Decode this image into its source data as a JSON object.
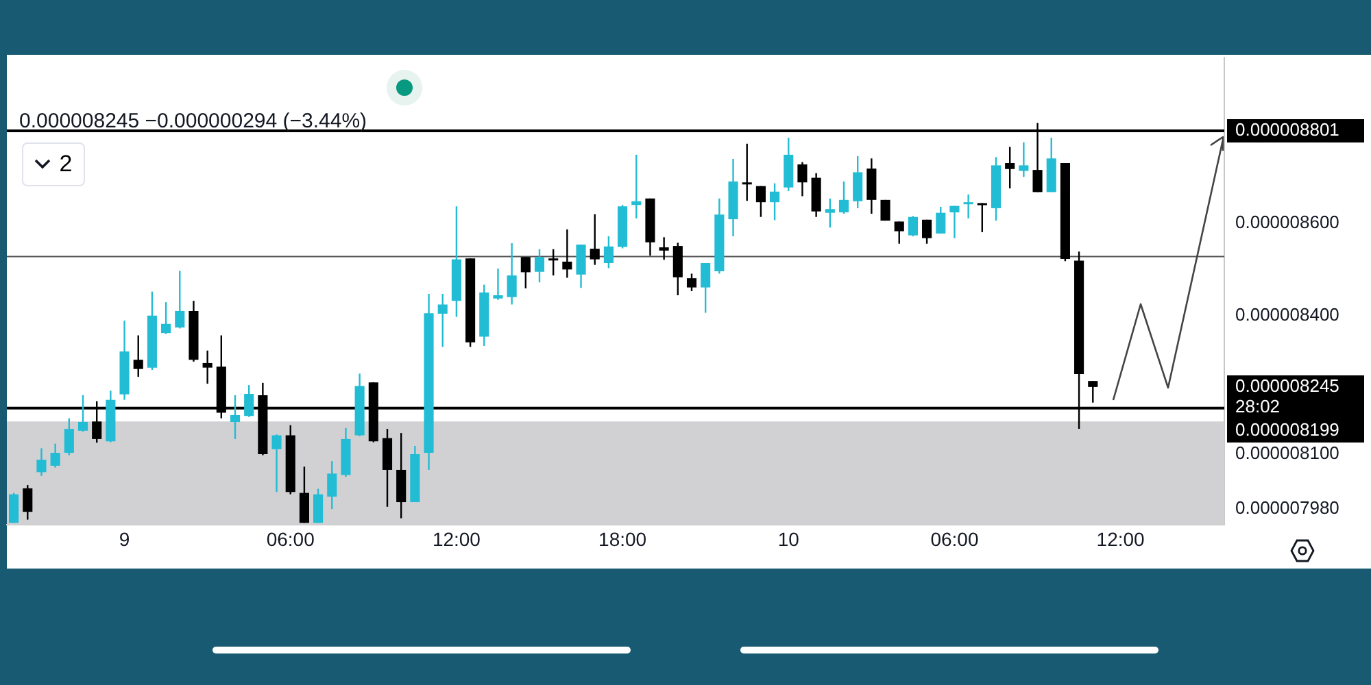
{
  "chart_data": {
    "type": "candlestick",
    "annotations": [
      "0.000008245 −0.000000294 (−3.44%)",
      "2",
      "0.000008245",
      "28:02"
    ],
    "categories": [
      null,
      null,
      null,
      null,
      null,
      null,
      null,
      null,
      "9",
      null,
      null,
      null,
      null,
      null,
      null,
      null,
      null,
      null,
      null,
      null,
      "06:00",
      null,
      null,
      null,
      null,
      null,
      null,
      null,
      null,
      null,
      null,
      null,
      "12:00",
      null,
      null,
      null,
      null,
      null,
      null,
      null,
      null,
      null,
      null,
      null,
      "18:00",
      null,
      null,
      null,
      null,
      null,
      null,
      null,
      null,
      null,
      null,
      null,
      "10",
      null,
      null,
      null,
      null,
      null,
      null,
      null,
      null,
      null,
      null,
      null,
      "06:00",
      null,
      null,
      null,
      null,
      null,
      null,
      null,
      null,
      null,
      null,
      null,
      "12:00",
      null,
      null,
      null,
      null,
      null,
      null,
      null
    ],
    "ohlc": [
      [
        7.95e-06,
        8.015e-06,
        7.95e-06,
        8.012e-06
      ],
      [
        8.025e-06,
        8.032e-06,
        7.957e-06,
        7.974e-06
      ],
      [
        8.06e-06,
        8.112e-06,
        8.052e-06,
        8.087e-06
      ],
      [
        8.074e-06,
        8.122e-06,
        8.07e-06,
        8.102e-06
      ],
      [
        8.102e-06,
        8.177e-06,
        8.097e-06,
        8.154e-06
      ],
      [
        8.15e-06,
        8.227e-06,
        8.148e-06,
        8.169e-06
      ],
      [
        8.17e-06,
        8.214e-06,
        8.124e-06,
        8.132e-06
      ],
      [
        8.127e-06,
        8.237e-06,
        8.125e-06,
        8.217e-06
      ],
      [
        8.229e-06,
        8.389e-06,
        8.217e-06,
        8.322e-06
      ],
      [
        8.304e-06,
        8.357e-06,
        8.267e-06,
        8.284e-06
      ],
      [
        8.287e-06,
        8.452e-06,
        8.282e-06,
        8.4e-06
      ],
      [
        8.362e-06,
        8.429e-06,
        8.36e-06,
        8.382e-06
      ],
      [
        8.374e-06,
        8.497e-06,
        8.372e-06,
        8.41e-06
      ],
      [
        8.41e-06,
        8.432e-06,
        8.3e-06,
        8.304e-06
      ],
      [
        8.297e-06,
        8.324e-06,
        8.252e-06,
        8.287e-06
      ],
      [
        8.289e-06,
        8.357e-06,
        8.177e-06,
        8.189e-06
      ],
      [
        8.169e-06,
        8.227e-06,
        8.132e-06,
        8.184e-06
      ],
      [
        8.182e-06,
        8.249e-06,
        8.18e-06,
        8.23e-06
      ],
      [
        8.227e-06,
        8.254e-06,
        8.097e-06,
        8.099e-06
      ],
      [
        8.11e-06,
        8.142e-06,
        8.017e-06,
        8.14e-06
      ],
      [
        8.14e-06,
        8.162e-06,
        8.012e-06,
        8.017e-06
      ],
      [
        8.015e-06,
        8.072e-06,
        7.95e-06,
        7.95e-06
      ],
      [
        7.95e-06,
        8.024e-06,
        7.95e-06,
        8.012e-06
      ],
      [
        8.007e-06,
        8.084e-06,
        7.98e-06,
        8.057e-06
      ],
      [
        8.054e-06,
        8.156e-06,
        8.05e-06,
        8.132e-06
      ],
      [
        8.14e-06,
        8.274e-06,
        8.138e-06,
        8.247e-06
      ],
      [
        8.255e-06,
        8.255e-06,
        8.125e-06,
        8.127e-06
      ],
      [
        8.134e-06,
        8.154e-06,
        7.985e-06,
        8.065e-06
      ],
      [
        8.065e-06,
        8.145e-06,
        7.96e-06,
        7.995e-06
      ],
      [
        7.995e-06,
        8.117e-06,
        7.995e-06,
        8.099e-06
      ],
      [
        8.102e-06,
        8.447e-06,
        8.065e-06,
        8.405e-06
      ],
      [
        8.404e-06,
        8.447e-06,
        8.332e-06,
        8.424e-06
      ],
      [
        8.432e-06,
        8.637e-06,
        8.397e-06,
        8.522e-06
      ],
      [
        8.524e-06,
        8.524e-06,
        8.332e-06,
        8.342e-06
      ],
      [
        8.354e-06,
        8.467e-06,
        8.334e-06,
        8.45e-06
      ],
      [
        8.437e-06,
        8.502e-06,
        8.434e-06,
        8.444e-06
      ],
      [
        8.44e-06,
        8.557e-06,
        8.424e-06,
        8.487e-06
      ],
      [
        8.527e-06,
        8.527e-06,
        8.459e-06,
        8.494e-06
      ],
      [
        8.495e-06,
        8.544e-06,
        8.472e-06,
        8.527e-06
      ],
      [
        8.524e-06,
        8.544e-06,
        8.487e-06,
        8.52e-06
      ],
      [
        8.517e-06,
        8.587e-06,
        8.482e-06,
        8.5e-06
      ],
      [
        8.489e-06,
        8.554e-06,
        8.46e-06,
        8.554e-06
      ],
      [
        8.545e-06,
        8.62e-06,
        8.51e-06,
        8.522e-06
      ],
      [
        8.514e-06,
        8.572e-06,
        8.503e-06,
        8.55e-06
      ],
      [
        8.549e-06,
        8.64e-06,
        8.546e-06,
        8.637e-06
      ],
      [
        8.64e-06,
        8.749e-06,
        8.611e-06,
        8.648e-06
      ],
      [
        8.654e-06,
        8.654e-06,
        8.53e-06,
        8.559e-06
      ],
      [
        8.548e-06,
        8.57e-06,
        8.521e-06,
        8.541e-06
      ],
      [
        8.551e-06,
        8.558e-06,
        8.444e-06,
        8.483e-06
      ],
      [
        8.481e-06,
        8.491e-06,
        8.453e-06,
        8.461e-06
      ],
      [
        8.461e-06,
        8.514e-06,
        8.406e-06,
        8.514e-06
      ],
      [
        8.496e-06,
        8.654e-06,
        8.491e-06,
        8.619e-06
      ],
      [
        8.609e-06,
        8.74e-06,
        8.572e-06,
        8.691e-06
      ],
      [
        8.689e-06,
        8.773e-06,
        8.649e-06,
        8.685e-06
      ],
      [
        8.681e-06,
        8.681e-06,
        8.614e-06,
        8.646e-06
      ],
      [
        8.646e-06,
        8.687e-06,
        8.607e-06,
        8.669e-06
      ],
      [
        8.678e-06,
        8.786e-06,
        8.67e-06,
        8.749e-06
      ],
      [
        8.728e-06,
        8.733e-06,
        8.659e-06,
        8.689e-06
      ],
      [
        8.699e-06,
        8.709e-06,
        8.614e-06,
        8.626e-06
      ],
      [
        8.623e-06,
        8.654e-06,
        8.591e-06,
        8.631e-06
      ],
      [
        8.624e-06,
        8.691e-06,
        8.621e-06,
        8.651e-06
      ],
      [
        8.648e-06,
        8.746e-06,
        8.633e-06,
        8.711e-06
      ],
      [
        8.719e-06,
        8.741e-06,
        8.621e-06,
        8.651e-06
      ],
      [
        8.651e-06,
        8.651e-06,
        8.606e-06,
        8.606e-06
      ],
      [
        8.604e-06,
        8.604e-06,
        8.556e-06,
        8.583e-06
      ],
      [
        8.574e-06,
        8.616e-06,
        8.572e-06,
        8.614e-06
      ],
      [
        8.608e-06,
        8.608e-06,
        8.556e-06,
        8.568e-06
      ],
      [
        8.578e-06,
        8.636e-06,
        8.578e-06,
        8.623e-06
      ],
      [
        8.624e-06,
        8.638e-06,
        8.568e-06,
        8.638e-06
      ],
      [
        8.643e-06,
        8.663e-06,
        8.611e-06,
        8.646e-06
      ],
      [
        8.644e-06,
        8.644e-06,
        8.581e-06,
        8.64e-06
      ],
      [
        8.633e-06,
        8.744e-06,
        8.606e-06,
        8.726e-06
      ],
      [
        8.731e-06,
        8.766e-06,
        8.676e-06,
        8.718e-06
      ],
      [
        8.714e-06,
        8.776e-06,
        8.701e-06,
        8.726e-06
      ],
      [
        8.716e-06,
        8.818e-06,
        8.668e-06,
        8.668e-06
      ],
      [
        8.668e-06,
        8.786e-06,
        8.668e-06,
        8.741e-06
      ],
      [
        8.731e-06,
        8.731e-06,
        8.518e-06,
        8.523e-06
      ],
      [
        8.519e-06,
        8.539e-06,
        8.154e-06,
        8.273e-06
      ],
      [
        8.258e-06,
        8.258e-06,
        8.211e-06,
        8.245e-06
      ],
      null,
      null,
      null,
      null,
      null,
      null,
      null,
      null,
      null
    ],
    "colors": [
      "#22bcd4",
      "#000000",
      "#22bcd4",
      "#22bcd4",
      "#22bcd4",
      "#22bcd4",
      "#000000",
      "#22bcd4",
      "#22bcd4",
      "#000000",
      "#22bcd4",
      "#22bcd4",
      "#22bcd4",
      "#000000",
      "#000000",
      "#000000",
      "#22bcd4",
      "#22bcd4",
      "#000000",
      "#22bcd4",
      "#000000",
      "#000000",
      "#22bcd4",
      "#22bcd4",
      "#22bcd4",
      "#22bcd4",
      "#000000",
      "#000000",
      "#000000",
      "#22bcd4",
      "#22bcd4",
      "#22bcd4",
      "#22bcd4",
      "#000000",
      "#22bcd4",
      "#22bcd4",
      "#22bcd4",
      "#000000",
      "#22bcd4",
      "#000000",
      "#000000",
      "#22bcd4",
      "#000000",
      "#22bcd4",
      "#22bcd4",
      "#22bcd4",
      "#000000",
      "#000000",
      "#000000",
      "#000000",
      "#22bcd4",
      "#22bcd4",
      "#22bcd4",
      "#000000",
      "#000000",
      "#22bcd4",
      "#22bcd4",
      "#000000",
      "#000000",
      "#22bcd4",
      "#22bcd4",
      "#22bcd4",
      "#000000",
      "#000000",
      "#000000",
      "#22bcd4",
      "#000000",
      "#22bcd4",
      "#22bcd4",
      "#22bcd4",
      "#000000",
      "#22bcd4",
      "#000000",
      "#22bcd4",
      "#000000",
      "#22bcd4",
      "#000000",
      "#000000",
      "#000000",
      null,
      null,
      null,
      null,
      null,
      null,
      null,
      null,
      null
    ],
    "ylim": [
      7.946e-06,
      8.96e-06
    ],
    "yticks": [
      {
        "value": 7.98e-06,
        "label": "0.000007980"
      },
      {
        "value": 8.1e-06,
        "label": "0.000008100"
      },
      {
        "value": 8.4e-06,
        "label": "0.000008400"
      },
      {
        "value": 8.6e-06,
        "label": "0.000008600"
      }
    ],
    "ref_lines": [
      {
        "axis": "y",
        "value": 8.801e-06,
        "label": "0.000008801",
        "color": "#000000"
      },
      {
        "axis": "y",
        "value": 8.528e-06,
        "color": "#555555"
      },
      {
        "axis": "y",
        "value": 8.199e-06,
        "label": "0.000008199",
        "color": "#000000"
      }
    ],
    "bands": [
      {
        "axis": "y",
        "from": 7.946e-06,
        "to": 8.17e-06,
        "color": "#d1d1d4"
      }
    ],
    "grid": false,
    "legend": false
  }
}
